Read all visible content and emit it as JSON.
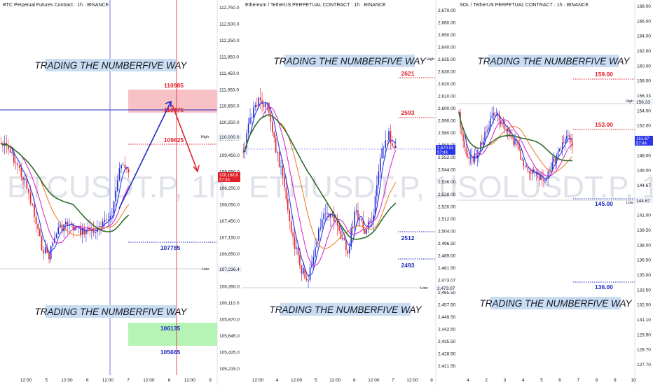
{
  "panels": [
    {
      "id": "btc",
      "title": "BTC Perpetual Futures Contract · 1h · BINANCE",
      "watermark": "BTCUSDT.P, 1h",
      "banner_top": "TRADING THE NUMBERFIVE WAY",
      "banner_bottom": "TRADING THE NUMBERFIVE WAY",
      "y_ticks": [
        "112,750.0",
        "112,500.0",
        "112,250.0",
        "111,850.0",
        "111,450.0",
        "111,050.0",
        "110,650.0",
        "110,250.0",
        "109,850.0",
        "109,450.0",
        "108,650.0",
        "108,250.0",
        "108,050.0",
        "107,450.0",
        "107,150.0",
        "106,850.0",
        "106,600.0",
        "106,350.0",
        "106,110.0",
        "105,870.0",
        "105,645.0",
        "105,425.0",
        "105,215.0"
      ],
      "x_ticks": [
        "12:00",
        "5",
        "12:00",
        "6",
        "12:00",
        "7",
        "12:00",
        "8",
        "12:00",
        "9"
      ],
      "last_price": "109,168.8",
      "countdown": "57:44",
      "high_label": "High",
      "high_value": "110,000.0",
      "low_label": "Low",
      "low_value": "107,236.4",
      "levels": [
        {
          "value": "110985",
          "kind": "red"
        },
        {
          "value": "110475",
          "kind": "red"
        },
        {
          "value": "109825",
          "kind": "red"
        },
        {
          "value": "107785",
          "kind": "blue"
        },
        {
          "value": "106135",
          "kind": "blue"
        },
        {
          "value": "105665",
          "kind": "blue"
        }
      ]
    },
    {
      "id": "eth",
      "title": "Ethereum / TetherUS PERPETUAL CONTRACT · 1h · BINANCE",
      "watermark": "ETHUSDT.P, 1h",
      "banner_top": "TRADING THE NUMBERFIVE WAY",
      "banner_bottom": "TRADING THE NUMBERFIVE WAY",
      "y_ticks": [
        "2,670.00",
        "2,660.00",
        "2,650.00",
        "2,640.00",
        "2,635.00",
        "2,630.00",
        "2,620.00",
        "2,610.00",
        "2,600.00",
        "2,590.00",
        "2,580.00",
        "2,560.00",
        "2,552.00",
        "2,544.00",
        "2,536.00",
        "2,528.00",
        "2,520.00",
        "2,512.00",
        "2,504.00",
        "2,496.50",
        "2,489.00",
        "2,481.50",
        "2,473.07",
        "2,465.50",
        "2,457.50",
        "2,449.50",
        "2,442.50",
        "2,435.50",
        "2,428.50",
        "2,421.50"
      ],
      "x_ticks": [
        "12:00",
        "4",
        "12:00",
        "5",
        "12:00",
        "6",
        "12:00",
        "7",
        "12:00",
        "8"
      ],
      "last_price": "2,570.02",
      "countdown": "57:44",
      "high_label": "High",
      "low_label": "Low",
      "low_value": "2,473.07",
      "levels": [
        {
          "value": "2621",
          "kind": "red"
        },
        {
          "value": "2593",
          "kind": "red"
        },
        {
          "value": "2512",
          "kind": "blue"
        },
        {
          "value": "2493",
          "kind": "blue"
        }
      ]
    },
    {
      "id": "sol",
      "title": "SOL / TetherUS PERPETUAL CONTRACT · 1h · BINANCE",
      "watermark": "SOLUSDT.P, 1h",
      "banner_top": "TRADING THE NUMBERFIVE WAY",
      "banner_bottom": "TRADING THE NUMBERFIVE WAY",
      "y_ticks": [
        "168.00",
        "166.00",
        "164.00",
        "162.00",
        "160.00",
        "158.00",
        "156.33",
        "154.00",
        "152.00",
        "150.00",
        "148.00",
        "146.00",
        "144.67",
        "142.50",
        "141.00",
        "139.50",
        "138.00",
        "136.50",
        "135.00",
        "133.50",
        "132.00",
        "131.10",
        "129.90",
        "128.70",
        "127.70"
      ],
      "x_ticks": [
        "4",
        "2",
        "3",
        "4",
        "5",
        "6",
        "7",
        "8",
        "9",
        "10"
      ],
      "last_price": "151.87",
      "countdown": "57:44",
      "high_label": "High",
      "high_value": "156.33",
      "low_label": "Low",
      "low_value": "144.67",
      "levels": [
        {
          "value": "159.00",
          "kind": "red"
        },
        {
          "value": "153.00",
          "kind": "red"
        },
        {
          "value": "145.00",
          "kind": "blue"
        },
        {
          "value": "136.00",
          "kind": "blue"
        }
      ]
    }
  ],
  "colors": {
    "candle_up": "#1f2bd8",
    "candle_down": "#e0202a",
    "ma_fast": "#2b35e8",
    "ma_mid": "#d61ec0",
    "ma_slow": "#ee7420",
    "ma_long": "#2f6b2a",
    "level_red": "#e0202a",
    "level_blue": "#1d2bbf",
    "banner_bg": "#c9dcf2"
  }
}
